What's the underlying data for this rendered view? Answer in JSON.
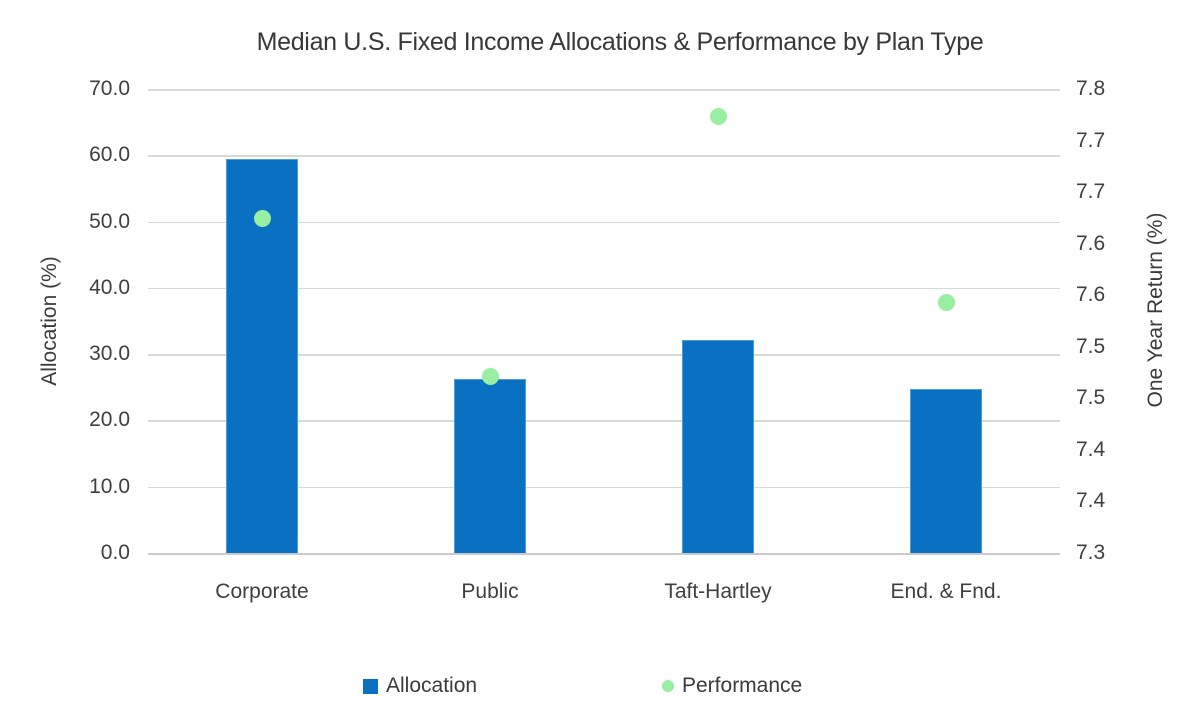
{
  "chart_data": {
    "type": "combo",
    "title": "Median U.S. Fixed Income Allocations & Performance by Plan Type",
    "categories": [
      "Corporate",
      "Public",
      "Taft-Hartley",
      "End. & Fnd."
    ],
    "series": [
      {
        "name": "Allocation",
        "type": "bar",
        "axis": "left",
        "values": [
          59.5,
          26.3,
          32.1,
          24.8
        ],
        "color": "#0a70c2"
      },
      {
        "name": "Performance",
        "type": "scatter",
        "axis": "right",
        "values": [
          7.66,
          7.49,
          7.77,
          7.57
        ],
        "color": "#98efa2"
      }
    ],
    "left_axis": {
      "label": "Allocation (%)",
      "min": 0,
      "max": 70,
      "ticks": [
        "70.0",
        "60.0",
        "50.0",
        "40.0",
        "30.0",
        "20.0",
        "10.0",
        "0.0"
      ]
    },
    "right_axis": {
      "label": "One Year Return (%)",
      "min": 7.3,
      "max": 7.8,
      "ticks": [
        "7.8",
        "7.7",
        "7.7",
        "7.6",
        "7.6",
        "7.5",
        "7.5",
        "7.4",
        "7.4",
        "7.3"
      ]
    },
    "legend": {
      "position": "bottom"
    },
    "grid": true,
    "colors": {
      "bar": "#0a70c2",
      "dot": "#98efa2",
      "gridline": "#d9d9d9",
      "text": "#3f3f3f"
    }
  }
}
